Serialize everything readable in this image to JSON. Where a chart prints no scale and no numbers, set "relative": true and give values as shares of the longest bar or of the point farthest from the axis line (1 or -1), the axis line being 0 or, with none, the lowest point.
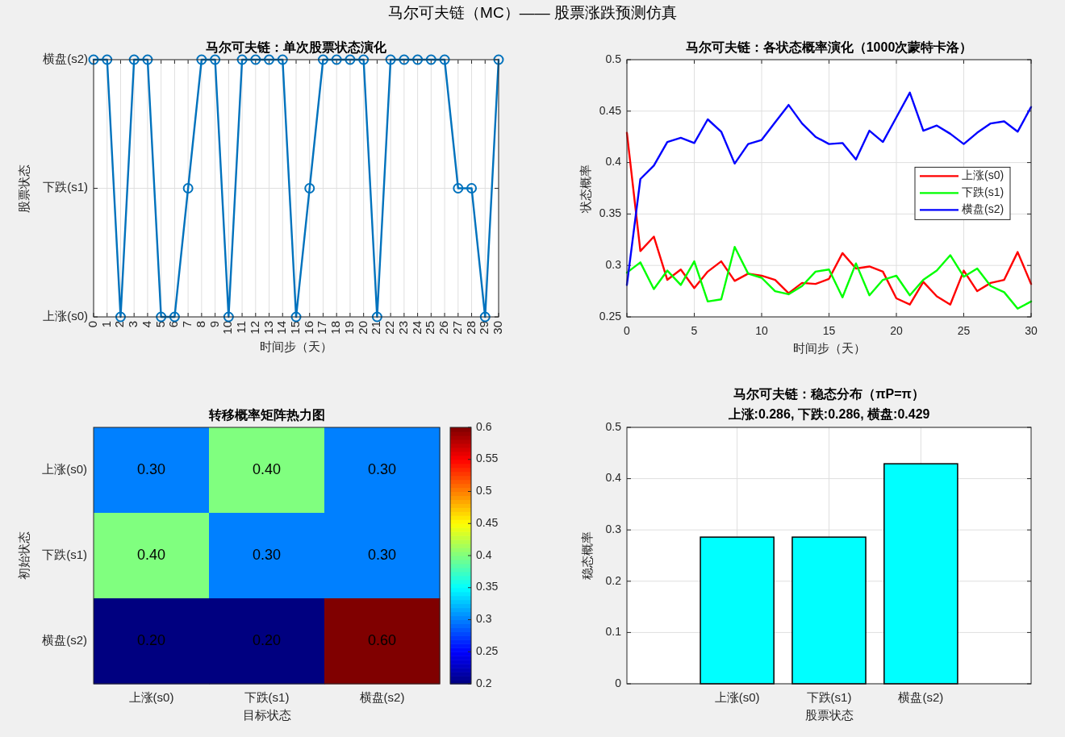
{
  "chart_data": [
    {
      "type": "other",
      "title": "马尔可夫链（MC）—— 股票涨跌预测仿真"
    },
    {
      "type": "line",
      "title": "马尔可夫链：单次股票状态演化",
      "xlabel": "时间步（天）",
      "ylabel": "股票状态",
      "marker": "circle",
      "grid": true,
      "x": [
        0,
        1,
        2,
        3,
        4,
        5,
        6,
        7,
        8,
        9,
        10,
        11,
        12,
        13,
        14,
        15,
        16,
        17,
        18,
        19,
        20,
        21,
        22,
        23,
        24,
        25,
        26,
        27,
        28,
        29,
        30
      ],
      "xlim": [
        0,
        30
      ],
      "xticks": [
        0,
        1,
        2,
        3,
        4,
        5,
        6,
        7,
        8,
        9,
        10,
        11,
        12,
        13,
        14,
        15,
        16,
        17,
        18,
        19,
        20,
        21,
        22,
        23,
        24,
        25,
        26,
        27,
        28,
        29,
        30
      ],
      "relative": true,
      "y_categories": [
        "横盘(s2)",
        "下跌(s1)",
        "上涨(s0)"
      ],
      "series": [
        {
          "color": "#0072bd",
          "values": [
            1,
            1,
            0,
            1,
            1,
            0,
            0,
            0.5,
            1,
            1,
            0,
            1,
            1,
            1,
            1,
            0,
            0.5,
            1,
            1,
            1,
            1,
            0,
            1,
            1,
            1,
            1,
            1,
            0.5,
            0.5,
            0,
            1
          ]
        }
      ]
    },
    {
      "type": "line",
      "title": "马尔可夫链：各状态概率演化（1000次蒙特卡洛）",
      "xlabel": "时间步（天）",
      "ylabel": "状态概率",
      "grid": true,
      "legend": "right",
      "x": [
        0,
        1,
        2,
        3,
        4,
        5,
        6,
        7,
        8,
        9,
        10,
        11,
        12,
        13,
        14,
        15,
        16,
        17,
        18,
        19,
        20,
        21,
        22,
        23,
        24,
        25,
        26,
        27,
        28,
        29,
        30
      ],
      "xlim": [
        0,
        30
      ],
      "xticks": [
        0,
        5,
        10,
        15,
        20,
        25,
        30
      ],
      "ylim": [
        0.25,
        0.5
      ],
      "yticks": [
        0.25,
        {
          "value": 0.3,
          "label": "0.3"
        },
        0.35,
        {
          "value": 0.4,
          "label": "0.4"
        },
        0.45,
        {
          "value": 0.5,
          "label": "0.5"
        }
      ],
      "series": [
        {
          "name": "上涨(s0)",
          "color": "#ff0000",
          "values": [
            0.429,
            0.314,
            0.328,
            0.286,
            0.296,
            0.278,
            0.294,
            0.304,
            0.285,
            0.292,
            0.29,
            0.286,
            0.273,
            0.283,
            0.282,
            0.287,
            0.312,
            0.297,
            0.299,
            0.294,
            0.268,
            0.262,
            0.284,
            0.27,
            0.262,
            0.295,
            0.275,
            0.283,
            0.286,
            0.313,
            0.282
          ]
        },
        {
          "name": "下跌(s1)",
          "color": "#00ff00",
          "values": [
            0.293,
            0.303,
            0.277,
            0.295,
            0.281,
            0.304,
            0.265,
            0.267,
            0.318,
            0.292,
            0.288,
            0.275,
            0.272,
            0.28,
            0.294,
            0.296,
            0.269,
            0.302,
            0.271,
            0.286,
            0.29,
            0.271,
            0.286,
            0.295,
            0.31,
            0.289,
            0.297,
            0.28,
            0.274,
            0.258,
            0.265
          ]
        },
        {
          "name": "横盘(s2)",
          "color": "#0000ff",
          "values": [
            0.281,
            0.384,
            0.397,
            0.42,
            0.424,
            0.419,
            0.442,
            0.43,
            0.399,
            0.418,
            0.422,
            0.439,
            0.456,
            0.438,
            0.425,
            0.418,
            0.419,
            0.403,
            0.431,
            0.42,
            0.444,
            0.468,
            0.431,
            0.436,
            0.428,
            0.418,
            0.429,
            0.438,
            0.44,
            0.43,
            0.454
          ]
        }
      ]
    },
    {
      "type": "heatmap",
      "title": "转移概率矩阵热力图",
      "xlabel": "目标状态",
      "ylabel": "初始状态",
      "categories": [
        "上涨(s0)",
        "下跌(s1)",
        "横盘(s2)"
      ],
      "y_categories": [
        "上涨(s0)",
        "下跌(s1)",
        "横盘(s2)"
      ],
      "cells": [
        [
          0.3,
          0.4,
          0.3
        ],
        [
          0.4,
          0.3,
          0.3
        ],
        [
          0.2,
          0.2,
          0.6
        ]
      ],
      "cell_labels": [
        [
          "0.30",
          "0.40",
          "0.30"
        ],
        [
          "0.40",
          "0.30",
          "0.30"
        ],
        [
          "0.20",
          "0.20",
          "0.60"
        ]
      ],
      "clim": [
        0.2,
        0.6
      ],
      "cticks": [
        {
          "value": 0.2,
          "label": "0.2"
        },
        0.25,
        {
          "value": 0.3,
          "label": "0.3"
        },
        0.35,
        {
          "value": 0.4,
          "label": "0.4"
        },
        0.45,
        {
          "value": 0.5,
          "label": "0.5"
        },
        0.55,
        {
          "value": 0.6,
          "label": "0.6"
        }
      ]
    },
    {
      "type": "bar",
      "title": "马尔可夫链：稳态分布（πP=π）",
      "subtitle": "上涨:0.286, 下跌:0.286, 横盘:0.429",
      "xlabel": "股票状态",
      "ylabel": "稳态概率",
      "grid": true,
      "categories": [
        "上涨(s0)",
        "下跌(s1)",
        "横盘(s2)"
      ],
      "series": [
        {
          "color": "#00ffff",
          "values": [
            0.286,
            0.286,
            0.429
          ]
        }
      ],
      "ylim": [
        0,
        0.5
      ],
      "yticks": [
        0,
        {
          "value": 0.1,
          "label": "0.1"
        },
        {
          "value": 0.2,
          "label": "0.2"
        },
        {
          "value": 0.3,
          "label": "0.3"
        },
        {
          "value": 0.4,
          "label": "0.4"
        },
        {
          "value": 0.5,
          "label": "0.5"
        }
      ]
    }
  ]
}
